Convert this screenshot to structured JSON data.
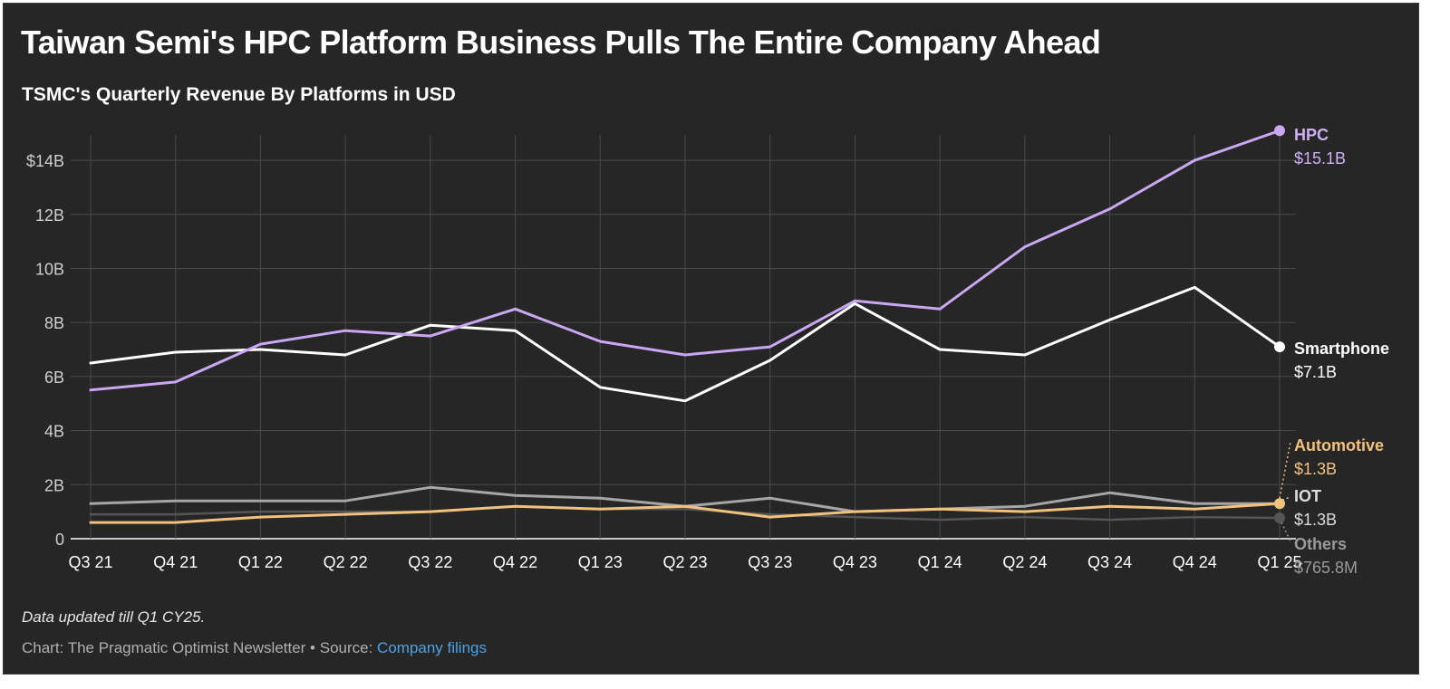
{
  "title": "Taiwan Semi's HPC Platform Business Pulls The Entire Company Ahead",
  "subtitle": "TSMC's Quarterly Revenue By Platforms in USD",
  "footer": {
    "note": "Data updated till Q1 CY25.",
    "credit_prefix": "Chart: The Pragmatic Optimist Newsletter • Source: ",
    "source_link": "Company filings"
  },
  "chart_data": {
    "type": "line",
    "categories": [
      "Q3 21",
      "Q4 21",
      "Q1 22",
      "Q2 22",
      "Q3 22",
      "Q4 22",
      "Q1 23",
      "Q2 23",
      "Q3 23",
      "Q4 23",
      "Q1 24",
      "Q2 24",
      "Q3 24",
      "Q4 24",
      "Q1 25"
    ],
    "ylim": [
      0,
      15
    ],
    "yticks": [
      0,
      2,
      4,
      6,
      8,
      10,
      12,
      14
    ],
    "ytick_labels": [
      "0",
      "2B",
      "4B",
      "6B",
      "8B",
      "10B",
      "12B",
      "14B"
    ],
    "yunit_first_label": "$14B",
    "grid": true,
    "legend": "direct labels at right end of lines",
    "series": [
      {
        "name": "HPC",
        "end_label": "$15.1B",
        "color": "#c9a7f2",
        "label_color": "#cfb0f5",
        "values": [
          5.5,
          5.8,
          7.2,
          7.7,
          7.5,
          8.5,
          7.3,
          6.8,
          7.1,
          8.8,
          8.5,
          10.8,
          12.2,
          14.0,
          15.1
        ]
      },
      {
        "name": "Smartphone",
        "end_label": "$7.1B",
        "color": "#ffffff",
        "label_color": "#ffffff",
        "values": [
          6.5,
          6.9,
          7.0,
          6.8,
          7.9,
          7.7,
          5.6,
          5.1,
          6.6,
          8.7,
          7.0,
          6.8,
          8.1,
          9.3,
          7.1
        ]
      },
      {
        "name": "IOT",
        "end_label": "$1.3B",
        "color": "#a6a6a6",
        "label_color": "#dcdcdc",
        "values": [
          1.3,
          1.4,
          1.4,
          1.4,
          1.9,
          1.6,
          1.5,
          1.2,
          1.5,
          1.0,
          1.1,
          1.2,
          1.7,
          1.3,
          1.3
        ]
      },
      {
        "name": "Automotive",
        "end_label": "$1.3B",
        "color": "#f2c17e",
        "label_color": "#f2c17e",
        "values": [
          0.6,
          0.6,
          0.8,
          0.9,
          1.0,
          1.2,
          1.1,
          1.2,
          0.8,
          1.0,
          1.1,
          1.0,
          1.2,
          1.1,
          1.3
        ]
      },
      {
        "name": "Others",
        "end_label": "$765.8M",
        "color": "#555555",
        "label_color": "#9a9a9a",
        "values": [
          0.9,
          0.9,
          1.0,
          1.0,
          1.0,
          1.2,
          1.1,
          1.1,
          0.9,
          0.8,
          0.7,
          0.8,
          0.7,
          0.8,
          0.77
        ]
      }
    ]
  }
}
